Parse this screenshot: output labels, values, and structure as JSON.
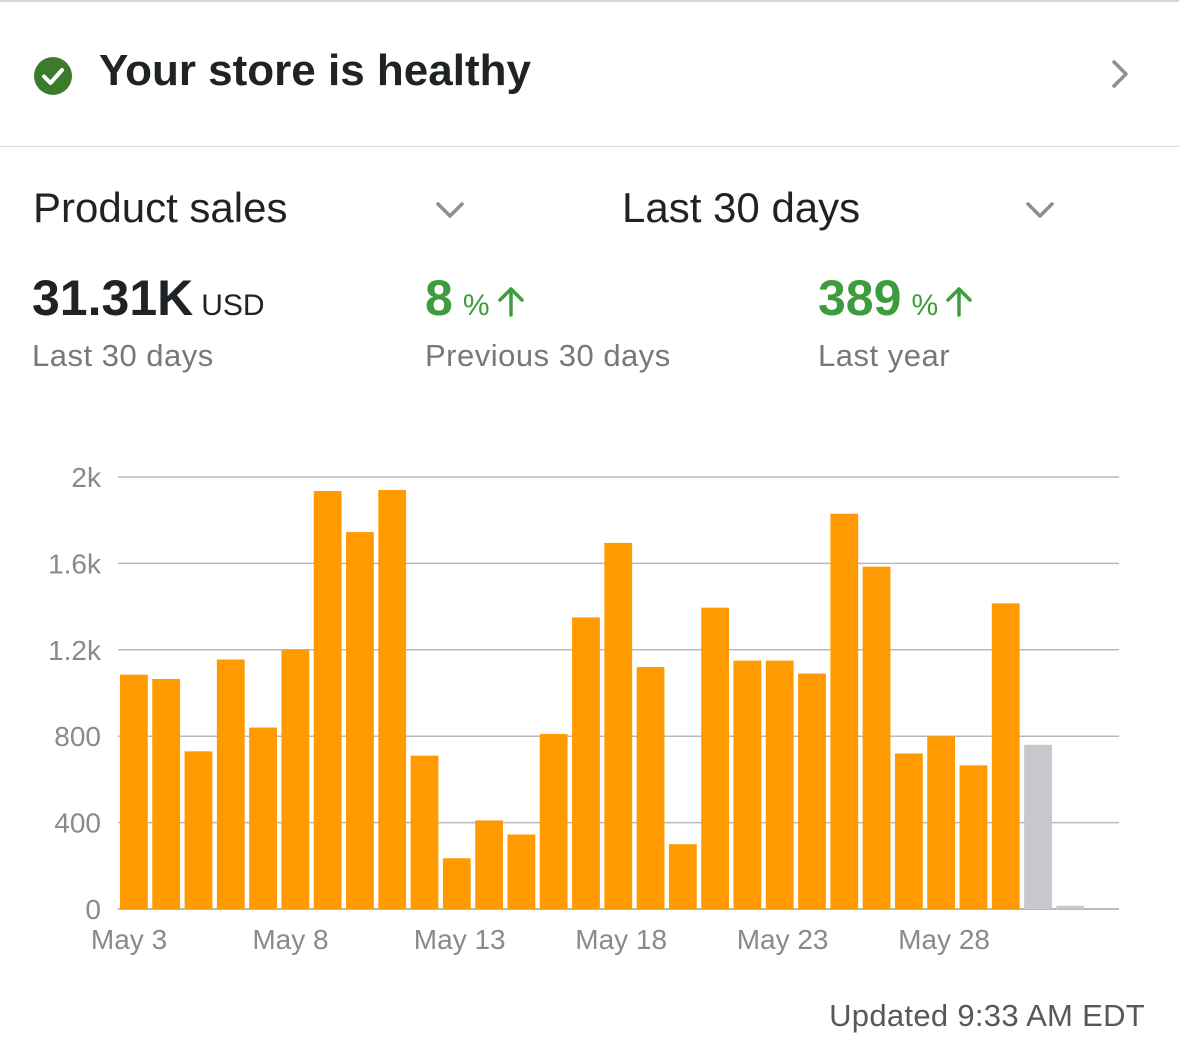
{
  "health": {
    "title": "Your store is healthy",
    "icon": "check-circle-icon",
    "icon_color": "#3d7b2c",
    "chevron_icon": "chevron-right-icon"
  },
  "filters": {
    "metric": {
      "label": "Product sales",
      "icon": "chevron-down-icon"
    },
    "period": {
      "label": "Last 30 days",
      "icon": "chevron-down-icon"
    }
  },
  "summary": {
    "total": {
      "value": "31.31K",
      "unit": "USD",
      "label": "Last 30 days"
    },
    "prev": {
      "value": "8",
      "unit": "%",
      "label": "Previous 30 days",
      "trend_icon": "arrow-up-icon",
      "color": "#3f9c3e"
    },
    "year": {
      "value": "389",
      "unit": "%",
      "label": "Last year",
      "trend_icon": "arrow-up-icon",
      "color": "#3f9c3e"
    }
  },
  "chart_data": {
    "type": "bar",
    "title": "",
    "xlabel": "",
    "ylabel": "",
    "ylim": [
      0,
      2000
    ],
    "y_ticks": [
      0,
      400,
      800,
      1200,
      1600,
      2000
    ],
    "y_tick_labels": [
      "0",
      "400",
      "800",
      "1.2k",
      "1.6k",
      "2k"
    ],
    "x_tick_labels": [
      {
        "index": 0,
        "label": "May 3"
      },
      {
        "index": 5,
        "label": "May 8"
      },
      {
        "index": 10,
        "label": "May 13"
      },
      {
        "index": 15,
        "label": "May 18"
      },
      {
        "index": 20,
        "label": "May 23"
      },
      {
        "index": 25,
        "label": "May 28"
      }
    ],
    "categories": [
      "May 3",
      "May 4",
      "May 5",
      "May 6",
      "May 7",
      "May 8",
      "May 9",
      "May 10",
      "May 11",
      "May 12",
      "May 13",
      "May 14",
      "May 15",
      "May 16",
      "May 17",
      "May 18",
      "May 19",
      "May 20",
      "May 21",
      "May 22",
      "May 23",
      "May 24",
      "May 25",
      "May 26",
      "May 27",
      "May 28",
      "May 29",
      "May 30",
      "May 31",
      "Jun 1",
      "Jun 2"
    ],
    "values": [
      1085,
      1065,
      730,
      1155,
      840,
      1200,
      1935,
      1745,
      1940,
      710,
      235,
      410,
      345,
      810,
      1350,
      1695,
      1120,
      300,
      1395,
      1150,
      1150,
      1090,
      1830,
      1585,
      720,
      800,
      665,
      1415,
      760,
      15,
      0
    ],
    "bar_colors": [
      "#ff9a00",
      "#ff9a00",
      "#ff9a00",
      "#ff9a00",
      "#ff9a00",
      "#ff9a00",
      "#ff9a00",
      "#ff9a00",
      "#ff9a00",
      "#ff9a00",
      "#ff9a00",
      "#ff9a00",
      "#ff9a00",
      "#ff9a00",
      "#ff9a00",
      "#ff9a00",
      "#ff9a00",
      "#ff9a00",
      "#ff9a00",
      "#ff9a00",
      "#ff9a00",
      "#ff9a00",
      "#ff9a00",
      "#ff9a00",
      "#ff9a00",
      "#ff9a00",
      "#ff9a00",
      "#ff9a00",
      "#c7c7cc",
      "#c7c7cc",
      "#c7c7cc"
    ],
    "grid": true,
    "gridline_color": "#b9b9bd",
    "legend": "none"
  },
  "footer": {
    "updated": "Updated 9:33 AM EDT"
  }
}
